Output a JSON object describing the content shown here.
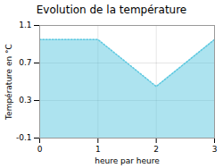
{
  "chart_data": {
    "type": "area",
    "title": "Evolution de la température",
    "xlabel": "heure par heure",
    "ylabel": "Température en °C",
    "x": [
      0,
      1,
      2,
      3
    ],
    "values": [
      0.95,
      0.95,
      0.45,
      0.95
    ],
    "color": "#5bc8e0",
    "line_style": "dotted",
    "xlim": [
      0,
      3
    ],
    "xticks": [
      0,
      1,
      2,
      3
    ],
    "ylim": [
      -0.1,
      1.1
    ],
    "yticks": [
      -0.1,
      0.3,
      0.7,
      1.1
    ],
    "grid": true
  }
}
